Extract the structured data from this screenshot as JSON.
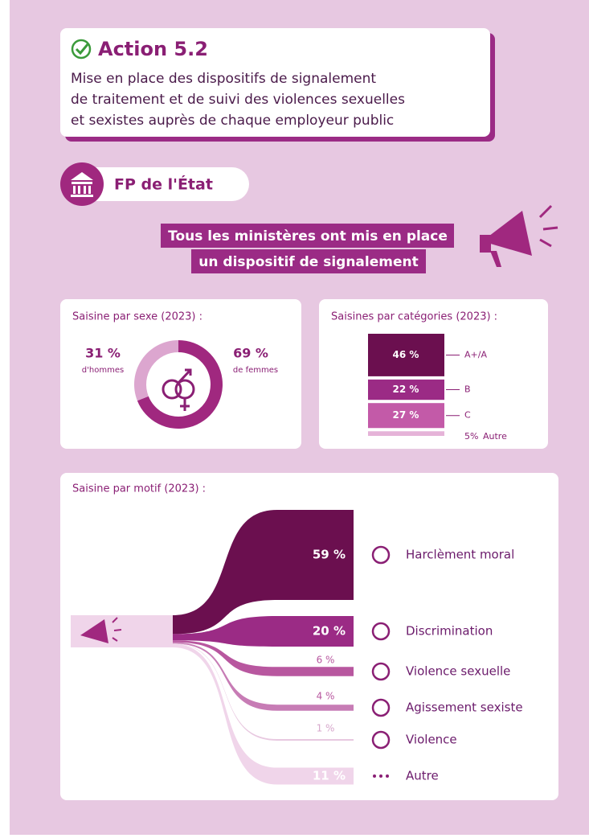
{
  "header": {
    "title": "Action 5.2",
    "text": [
      "Mise en place des dispositifs de signalement",
      "de traitement et de suivi des violences sexuelles",
      "et sexistes auprès de chaque employeur public"
    ]
  },
  "section": "FP de l'État",
  "banner": [
    "Tous les ministères ont mis en place",
    "un dispositif de signalement"
  ],
  "sex": {
    "title": "Saisine par sexe (2023) :",
    "items": [
      {
        "value": 31,
        "label": "31 %",
        "caption": "d'hommes"
      },
      {
        "value": 69,
        "label": "69 %",
        "caption": "de femmes"
      }
    ]
  },
  "categories": {
    "title": "Saisines par catégories (2023) :",
    "items": [
      {
        "value": 46,
        "label": "46 %",
        "name": "A+/A"
      },
      {
        "value": 22,
        "label": "22 %",
        "name": "B"
      },
      {
        "value": 27,
        "label": "27 %",
        "name": "C"
      },
      {
        "value": 5,
        "label": "5%",
        "name": "Autre"
      }
    ]
  },
  "motifs": {
    "title": "Saisine par motif (2023) :",
    "items": [
      {
        "value": 59,
        "label": "59 %",
        "name": "Harclèment moral"
      },
      {
        "value": 20,
        "label": "20 %",
        "name": "Discrimination"
      },
      {
        "value": 6,
        "label": "6 %",
        "name": "Violence sexuelle"
      },
      {
        "value": 4,
        "label": "4 %",
        "name": "Agissement sexiste"
      },
      {
        "value": 1,
        "label": "1 %",
        "name": "Violence"
      },
      {
        "value": 11,
        "label": "11 %",
        "name": "Autre"
      }
    ]
  }
}
